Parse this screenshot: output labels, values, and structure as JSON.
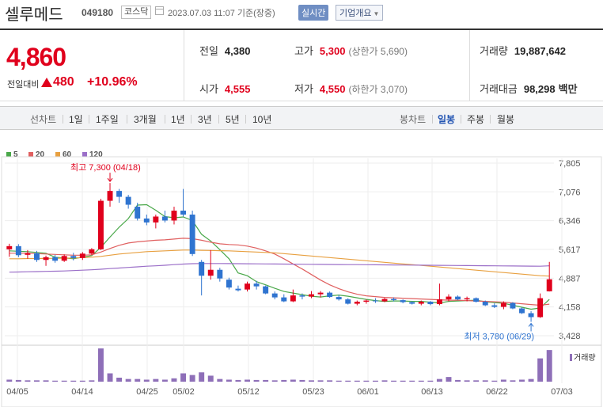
{
  "header": {
    "name": "셀루메드",
    "code": "049180",
    "market": "코스닥",
    "datetime": "2023.07.03 11:07 기준(장중)",
    "realtime_label": "실시간",
    "company_label": "기업개요"
  },
  "summary": {
    "price": "4,860",
    "change_label": "전일대비",
    "change": "480",
    "change_pct": "+10.96%",
    "prev_label": "전일",
    "prev": "4,380",
    "open_label": "시가",
    "open": "4,555",
    "high_label": "고가",
    "high": "5,300",
    "upper_limit": "(상한가 5,690)",
    "low_label": "저가",
    "low": "4,550",
    "lower_limit": "(하한가 3,070)",
    "volume_label": "거래량",
    "volume": "19,887,642",
    "amount_label": "거래대금",
    "amount": "98,298",
    "amount_unit": "백만"
  },
  "tabs": {
    "line_label": "선차트",
    "line": [
      "1일",
      "1주일",
      "3개월",
      "1년",
      "3년",
      "5년",
      "10년"
    ],
    "candle_label": "봉차트",
    "candle": [
      "일봉",
      "주봉",
      "월봉"
    ],
    "active_candle": "일봉"
  },
  "legend": [
    {
      "name": "5",
      "color": "#4aa84a"
    },
    {
      "name": "20",
      "color": "#e06060"
    },
    {
      "name": "60",
      "color": "#e8a040"
    },
    {
      "name": "120",
      "color": "#9b6fc8"
    }
  ],
  "volume_legend": "거래량",
  "colors": {
    "up": "#e0001c",
    "down": "#2f74d0",
    "accent": "#2254b2"
  },
  "chart_data": {
    "type": "candlestick",
    "x_ticks": [
      "04/05",
      "04/14",
      "04/25",
      "05/02",
      "05/12",
      "05/23",
      "06/01",
      "06/13",
      "06/22",
      "07/03"
    ],
    "y_ticks": [
      "7,805",
      "7,076",
      "6,346",
      "5,617",
      "4,887",
      "4,158",
      "3,428"
    ],
    "ylim": [
      3428,
      7805
    ],
    "annotations": {
      "high": "최고 7,300 (04/18)",
      "low": "최저 3,780 (06/29)"
    },
    "candles": [
      {
        "o": 5620,
        "h": 5760,
        "l": 5430,
        "c": 5700
      },
      {
        "o": 5700,
        "h": 5750,
        "l": 5420,
        "c": 5470
      },
      {
        "o": 5480,
        "h": 5600,
        "l": 5380,
        "c": 5520
      },
      {
        "o": 5520,
        "h": 5580,
        "l": 5300,
        "c": 5350
      },
      {
        "o": 5350,
        "h": 5460,
        "l": 5200,
        "c": 5420
      },
      {
        "o": 5420,
        "h": 5480,
        "l": 5280,
        "c": 5330
      },
      {
        "o": 5330,
        "h": 5490,
        "l": 5300,
        "c": 5450
      },
      {
        "o": 5450,
        "h": 5530,
        "l": 5340,
        "c": 5400
      },
      {
        "o": 5400,
        "h": 5550,
        "l": 5350,
        "c": 5510
      },
      {
        "o": 5510,
        "h": 5650,
        "l": 5480,
        "c": 5620
      },
      {
        "o": 5620,
        "h": 6900,
        "l": 5600,
        "c": 6850
      },
      {
        "o": 6850,
        "h": 7300,
        "l": 6700,
        "c": 7100
      },
      {
        "o": 7100,
        "h": 7150,
        "l": 6800,
        "c": 6950
      },
      {
        "o": 6950,
        "h": 7000,
        "l": 6650,
        "c": 6750
      },
      {
        "o": 6700,
        "h": 6800,
        "l": 6350,
        "c": 6400
      },
      {
        "o": 6400,
        "h": 6500,
        "l": 6230,
        "c": 6300
      },
      {
        "o": 6300,
        "h": 6500,
        "l": 6150,
        "c": 6450
      },
      {
        "o": 6450,
        "h": 6600,
        "l": 6300,
        "c": 6350
      },
      {
        "o": 6350,
        "h": 6700,
        "l": 6250,
        "c": 6600
      },
      {
        "o": 6600,
        "h": 7150,
        "l": 6450,
        "c": 6500
      },
      {
        "o": 6500,
        "h": 6600,
        "l": 5450,
        "c": 5500
      },
      {
        "o": 5300,
        "h": 5350,
        "l": 4450,
        "c": 4950
      },
      {
        "o": 4950,
        "h": 5600,
        "l": 4850,
        "c": 5100
      },
      {
        "o": 5100,
        "h": 5150,
        "l": 4800,
        "c": 4880
      },
      {
        "o": 4850,
        "h": 4900,
        "l": 4600,
        "c": 4650
      },
      {
        "o": 4620,
        "h": 4700,
        "l": 4550,
        "c": 4580
      },
      {
        "o": 4600,
        "h": 4800,
        "l": 4550,
        "c": 4750
      },
      {
        "o": 4750,
        "h": 4820,
        "l": 4600,
        "c": 4680
      },
      {
        "o": 4680,
        "h": 4700,
        "l": 4480,
        "c": 4500
      },
      {
        "o": 4500,
        "h": 4550,
        "l": 4350,
        "c": 4400
      },
      {
        "o": 4400,
        "h": 4480,
        "l": 4280,
        "c": 4300
      },
      {
        "o": 4300,
        "h": 4600,
        "l": 4280,
        "c": 4450
      },
      {
        "o": 4450,
        "h": 4500,
        "l": 4350,
        "c": 4420
      },
      {
        "o": 4420,
        "h": 4560,
        "l": 4380,
        "c": 4480
      },
      {
        "o": 4480,
        "h": 4560,
        "l": 4400,
        "c": 4520
      },
      {
        "o": 4520,
        "h": 4550,
        "l": 4390,
        "c": 4410
      },
      {
        "o": 4410,
        "h": 4460,
        "l": 4320,
        "c": 4350
      },
      {
        "o": 4350,
        "h": 4380,
        "l": 4220,
        "c": 4240
      },
      {
        "o": 4240,
        "h": 4320,
        "l": 4200,
        "c": 4290
      },
      {
        "o": 4290,
        "h": 4350,
        "l": 4240,
        "c": 4320
      },
      {
        "o": 4320,
        "h": 4380,
        "l": 4260,
        "c": 4300
      },
      {
        "o": 4300,
        "h": 4390,
        "l": 4280,
        "c": 4360
      },
      {
        "o": 4360,
        "h": 4400,
        "l": 4300,
        "c": 4330
      },
      {
        "o": 4330,
        "h": 4350,
        "l": 4250,
        "c": 4280
      },
      {
        "o": 4280,
        "h": 4300,
        "l": 4220,
        "c": 4240
      },
      {
        "o": 4240,
        "h": 4320,
        "l": 4200,
        "c": 4290
      },
      {
        "o": 4290,
        "h": 4310,
        "l": 4200,
        "c": 4230
      },
      {
        "o": 4230,
        "h": 4750,
        "l": 4200,
        "c": 4350
      },
      {
        "o": 4350,
        "h": 4480,
        "l": 4300,
        "c": 4420
      },
      {
        "o": 4420,
        "h": 4450,
        "l": 4330,
        "c": 4350
      },
      {
        "o": 4350,
        "h": 4420,
        "l": 4300,
        "c": 4380
      },
      {
        "o": 4380,
        "h": 4400,
        "l": 4270,
        "c": 4290
      },
      {
        "o": 4290,
        "h": 4320,
        "l": 4180,
        "c": 4200
      },
      {
        "o": 4200,
        "h": 4250,
        "l": 4130,
        "c": 4160
      },
      {
        "o": 4160,
        "h": 4300,
        "l": 4100,
        "c": 4260
      },
      {
        "o": 4260,
        "h": 4280,
        "l": 4100,
        "c": 4120
      },
      {
        "o": 4120,
        "h": 4150,
        "l": 3980,
        "c": 4000
      },
      {
        "o": 4000,
        "h": 4050,
        "l": 3780,
        "c": 3900
      },
      {
        "o": 3900,
        "h": 4500,
        "l": 3880,
        "c": 4380
      },
      {
        "o": 4555,
        "h": 5300,
        "l": 4550,
        "c": 4860
      }
    ],
    "volumes": [
      6,
      5,
      4,
      4,
      4,
      3,
      3,
      3,
      3,
      4,
      100,
      25,
      12,
      8,
      8,
      6,
      8,
      6,
      10,
      25,
      20,
      28,
      18,
      8,
      6,
      5,
      6,
      5,
      5,
      4,
      5,
      6,
      5,
      4,
      4,
      4,
      3,
      3,
      3,
      3,
      3,
      4,
      3,
      3,
      3,
      3,
      3,
      8,
      14,
      5,
      4,
      4,
      4,
      3,
      6,
      4,
      6,
      8,
      70,
      95
    ],
    "ma": [
      {
        "name": "5",
        "values": [
          5580,
          5570,
          5560,
          5540,
          5520,
          5420,
          5400,
          5380,
          5420,
          5460,
          5670,
          5930,
          6180,
          6400,
          6740,
          6750,
          6610,
          6450,
          6420,
          6440,
          6350,
          6000,
          5830,
          5610,
          5380,
          5020,
          4950,
          4800,
          4720,
          4630,
          4550,
          4510,
          4470,
          4430,
          4410,
          4440,
          4460,
          4430,
          4390,
          4350,
          4320,
          4300,
          4310,
          4310,
          4300,
          4300,
          4280,
          4260,
          4300,
          4310,
          4320,
          4330,
          4290,
          4270,
          4250,
          4200,
          4150,
          4100,
          4130,
          4350
        ]
      },
      {
        "name": "20",
        "values": [
          5520,
          5520,
          5520,
          5510,
          5500,
          5490,
          5480,
          5470,
          5470,
          5480,
          5550,
          5640,
          5720,
          5780,
          5810,
          5830,
          5850,
          5860,
          5880,
          5900,
          5890,
          5850,
          5800,
          5760,
          5740,
          5730,
          5700,
          5650,
          5580,
          5500,
          5380,
          5250,
          5120,
          4980,
          4840,
          4720,
          4620,
          4540,
          4480,
          4440,
          4420,
          4400,
          4390,
          4380,
          4370,
          4360,
          4350,
          4340,
          4330,
          4330,
          4320,
          4310,
          4300,
          4290,
          4280,
          4260,
          4240,
          4220,
          4200,
          4230
        ]
      },
      {
        "name": "60",
        "values": [
          5380,
          5380,
          5385,
          5385,
          5390,
          5390,
          5395,
          5400,
          5410,
          5420,
          5440,
          5470,
          5500,
          5520,
          5540,
          5560,
          5570,
          5580,
          5590,
          5600,
          5600,
          5595,
          5590,
          5585,
          5580,
          5570,
          5560,
          5550,
          5540,
          5530,
          5510,
          5490,
          5470,
          5450,
          5430,
          5410,
          5390,
          5370,
          5350,
          5330,
          5310,
          5290,
          5270,
          5250,
          5230,
          5210,
          5190,
          5170,
          5150,
          5130,
          5110,
          5090,
          5070,
          5050,
          5030,
          5010,
          4990,
          4970,
          4950,
          4940
        ]
      },
      {
        "name": "120",
        "values": [
          5040,
          5045,
          5050,
          5055,
          5060,
          5065,
          5070,
          5080,
          5090,
          5100,
          5115,
          5130,
          5145,
          5160,
          5175,
          5190,
          5200,
          5215,
          5230,
          5245,
          5255,
          5260,
          5260,
          5260,
          5258,
          5256,
          5254,
          5252,
          5250,
          5248,
          5246,
          5244,
          5242,
          5240,
          5238,
          5236,
          5234,
          5232,
          5230,
          5228,
          5226,
          5224,
          5222,
          5220,
          5218,
          5216,
          5214,
          5212,
          5210,
          5208,
          5206,
          5204,
          5202,
          5200,
          5198,
          5196,
          5194,
          5192,
          5190,
          5200
        ]
      }
    ]
  }
}
